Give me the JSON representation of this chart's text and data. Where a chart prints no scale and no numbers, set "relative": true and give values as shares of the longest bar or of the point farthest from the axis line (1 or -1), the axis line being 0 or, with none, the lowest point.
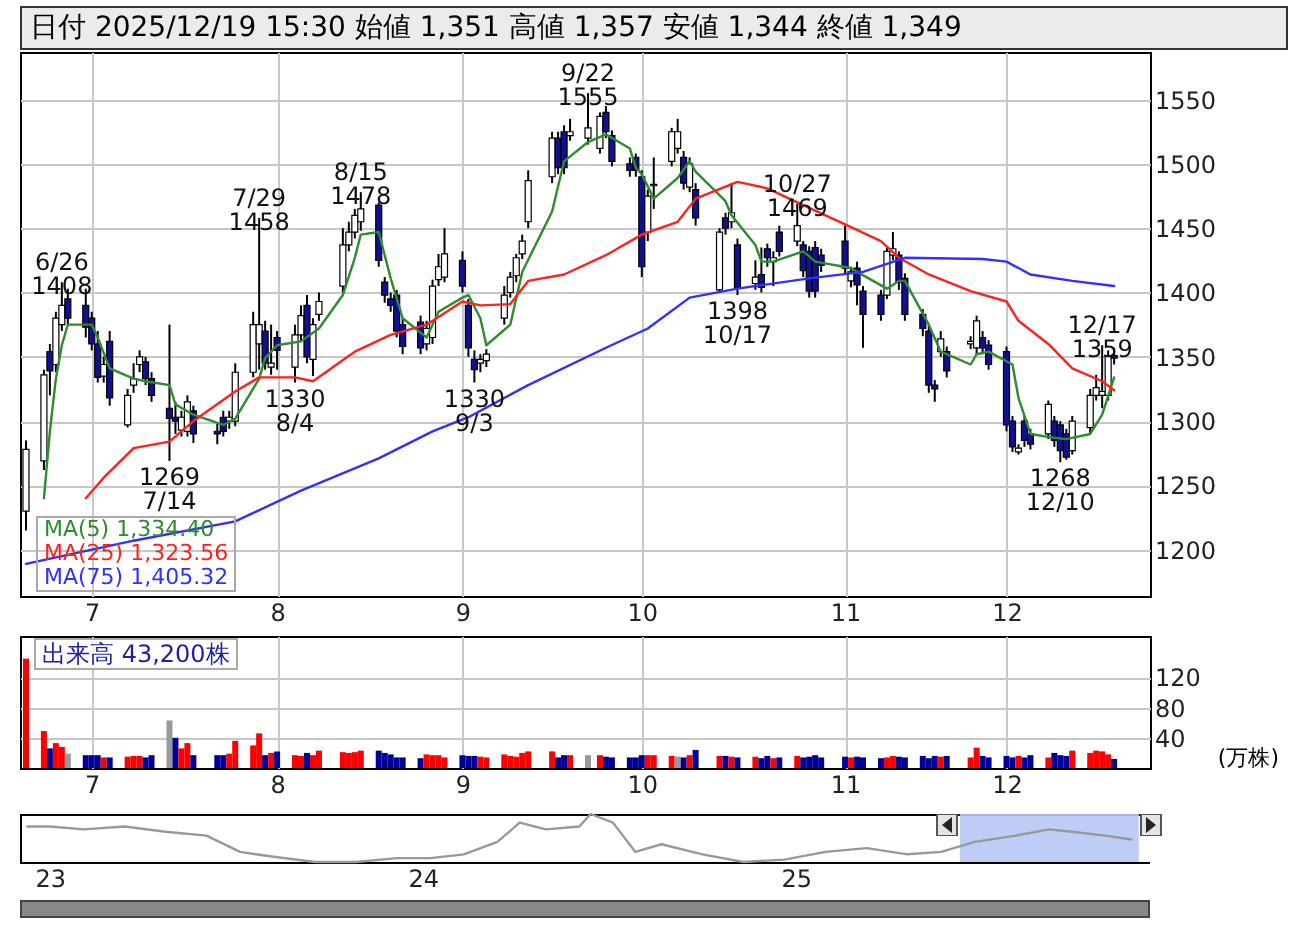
{
  "chart_data": [
    {
      "type": "candlestick",
      "title": "日付 2025/12/19 15:30 始値 1,351 高値 1,357 安値 1,344 終値 1,349",
      "x": [
        "2025-06-20",
        "2025-06-23",
        "2025-06-24",
        "2025-06-25",
        "2025-06-26",
        "2025-06-27",
        "2025-06-30",
        "2025-07-01",
        "2025-07-02",
        "2025-07-03",
        "2025-07-04",
        "2025-07-07",
        "2025-07-08",
        "2025-07-09",
        "2025-07-10",
        "2025-07-11",
        "2025-07-14",
        "2025-07-15",
        "2025-07-16",
        "2025-07-17",
        "2025-07-18",
        "2025-07-22",
        "2025-07-23",
        "2025-07-24",
        "2025-07-25",
        "2025-07-28",
        "2025-07-29",
        "2025-07-30",
        "2025-07-31",
        "2025-08-01",
        "2025-08-04",
        "2025-08-05",
        "2025-08-06",
        "2025-08-07",
        "2025-08-08",
        "2025-08-12",
        "2025-08-13",
        "2025-08-14",
        "2025-08-15",
        "2025-08-18",
        "2025-08-19",
        "2025-08-20",
        "2025-08-21",
        "2025-08-22",
        "2025-08-25",
        "2025-08-26",
        "2025-08-27",
        "2025-08-28",
        "2025-08-29",
        "2025-09-01",
        "2025-09-02",
        "2025-09-03",
        "2025-09-04",
        "2025-09-05",
        "2025-09-08",
        "2025-09-09",
        "2025-09-10",
        "2025-09-11",
        "2025-09-12",
        "2025-09-16",
        "2025-09-17",
        "2025-09-18",
        "2025-09-19",
        "2025-09-22",
        "2025-09-24",
        "2025-09-25",
        "2025-09-26",
        "2025-09-29",
        "2025-09-30",
        "2025-10-01",
        "2025-10-02",
        "2025-10-03",
        "2025-10-06",
        "2025-10-07",
        "2025-10-08",
        "2025-10-09",
        "2025-10-10",
        "2025-10-14",
        "2025-10-15",
        "2025-10-16",
        "2025-10-17",
        "2025-10-20",
        "2025-10-21",
        "2025-10-22",
        "2025-10-23",
        "2025-10-24",
        "2025-10-27",
        "2025-10-28",
        "2025-10-29",
        "2025-10-30",
        "2025-10-31",
        "2025-11-04",
        "2025-11-05",
        "2025-11-06",
        "2025-11-07",
        "2025-11-10",
        "2025-11-11",
        "2025-11-12",
        "2025-11-13",
        "2025-11-14",
        "2025-11-17",
        "2025-11-18",
        "2025-11-19",
        "2025-11-20",
        "2025-11-21",
        "2025-11-25",
        "2025-11-26",
        "2025-11-27",
        "2025-11-28",
        "2025-12-01",
        "2025-12-02",
        "2025-12-03",
        "2025-12-04",
        "2025-12-05",
        "2025-12-08",
        "2025-12-09",
        "2025-12-10",
        "2025-12-11",
        "2025-12-12",
        "2025-12-15",
        "2025-12-16",
        "2025-12-17",
        "2025-12-18",
        "2025-12-19"
      ],
      "ohlc": [
        [
          1230,
          1285,
          1215,
          1278
        ],
        [
          1269,
          1340,
          1262,
          1336
        ],
        [
          1354,
          1360,
          1320,
          1339
        ],
        [
          1344,
          1385,
          1338,
          1380
        ],
        [
          1375,
          1408,
          1370,
          1390
        ],
        [
          1395,
          1403,
          1375,
          1380
        ],
        [
          1390,
          1403,
          1365,
          1373
        ],
        [
          1380,
          1385,
          1355,
          1360
        ],
        [
          1360,
          1370,
          1330,
          1334
        ],
        [
          1335,
          1350,
          1330,
          1344
        ],
        [
          1362,
          1370,
          1312,
          1318
        ],
        [
          1297,
          1325,
          1295,
          1320
        ],
        [
          1328,
          1345,
          1322,
          1333
        ],
        [
          1344,
          1355,
          1338,
          1350
        ],
        [
          1346,
          1350,
          1328,
          1333
        ],
        [
          1333,
          1338,
          1315,
          1320
        ],
        [
          1310,
          1375,
          1269,
          1302
        ],
        [
          1303,
          1315,
          1290,
          1300
        ],
        [
          1293,
          1308,
          1288,
          1303
        ],
        [
          1292,
          1320,
          1288,
          1315
        ],
        [
          1308,
          1312,
          1283,
          1290
        ],
        [
          1292,
          1298,
          1282,
          1290
        ],
        [
          1303,
          1308,
          1288,
          1292
        ],
        [
          1300,
          1308,
          1294,
          1303
        ],
        [
          1300,
          1345,
          1296,
          1338
        ],
        [
          1338,
          1385,
          1334,
          1375
        ],
        [
          1360,
          1458,
          1340,
          1375
        ],
        [
          1370,
          1378,
          1340,
          1345
        ],
        [
          1342,
          1375,
          1336,
          1345
        ],
        [
          1365,
          1370,
          1340,
          1355
        ],
        [
          1342,
          1375,
          1330,
          1367
        ],
        [
          1367,
          1390,
          1362,
          1382
        ],
        [
          1390,
          1398,
          1345,
          1350
        ],
        [
          1348,
          1380,
          1335,
          1375
        ],
        [
          1383,
          1400,
          1378,
          1393
        ],
        [
          1405,
          1450,
          1400,
          1437
        ],
        [
          1437,
          1455,
          1432,
          1447
        ],
        [
          1447,
          1465,
          1442,
          1460
        ],
        [
          1455,
          1478,
          1448,
          1465
        ],
        [
          1468,
          1470,
          1420,
          1425
        ],
        [
          1408,
          1412,
          1392,
          1398
        ],
        [
          1395,
          1400,
          1385,
          1390
        ],
        [
          1398,
          1402,
          1365,
          1370
        ],
        [
          1375,
          1380,
          1352,
          1358
        ],
        [
          1377,
          1382,
          1352,
          1357
        ],
        [
          1360,
          1378,
          1355,
          1372
        ],
        [
          1365,
          1410,
          1360,
          1405
        ],
        [
          1410,
          1430,
          1405,
          1420
        ],
        [
          1412,
          1450,
          1408,
          1430
        ],
        [
          1425,
          1432,
          1400,
          1405
        ],
        [
          1390,
          1395,
          1350,
          1357
        ],
        [
          1348,
          1355,
          1330,
          1340
        ],
        [
          1345,
          1352,
          1338,
          1348
        ],
        [
          1347,
          1356,
          1342,
          1352
        ],
        [
          1380,
          1405,
          1375,
          1398
        ],
        [
          1400,
          1416,
          1396,
          1412
        ],
        [
          1413,
          1430,
          1408,
          1427
        ],
        [
          1430,
          1445,
          1426,
          1440
        ],
        [
          1455,
          1495,
          1450,
          1487
        ],
        [
          1490,
          1525,
          1485,
          1520
        ],
        [
          1520,
          1525,
          1492,
          1497
        ],
        [
          1525,
          1530,
          1492,
          1497
        ],
        [
          1522,
          1535,
          1518,
          1525
        ],
        [
          1520,
          1555,
          1515,
          1528
        ],
        [
          1512,
          1540,
          1508,
          1537
        ],
        [
          1540,
          1545,
          1520,
          1525
        ],
        [
          1522,
          1526,
          1498,
          1502
        ],
        [
          1500,
          1505,
          1490,
          1495
        ],
        [
          1505,
          1508,
          1490,
          1495
        ],
        [
          1490,
          1495,
          1412,
          1420
        ],
        [
          1447,
          1480,
          1440,
          1475
        ],
        [
          1483,
          1505,
          1465,
          1484
        ],
        [
          1502,
          1528,
          1498,
          1525
        ],
        [
          1512,
          1535,
          1508,
          1525
        ],
        [
          1505,
          1510,
          1480,
          1485
        ],
        [
          1482,
          1505,
          1478,
          1500
        ],
        [
          1480,
          1485,
          1452,
          1458
        ],
        [
          1402,
          1450,
          1400,
          1447
        ],
        [
          1458,
          1462,
          1445,
          1450
        ],
        [
          1455,
          1485,
          1450,
          1462
        ],
        [
          1437,
          1442,
          1398,
          1404
        ],
        [
          1407,
          1425,
          1402,
          1412
        ],
        [
          1414,
          1435,
          1400,
          1404
        ],
        [
          1434,
          1438,
          1420,
          1427
        ],
        [
          1424,
          1432,
          1405,
          1427
        ],
        [
          1447,
          1452,
          1428,
          1432
        ],
        [
          1440,
          1469,
          1436,
          1452
        ],
        [
          1437,
          1440,
          1412,
          1417
        ],
        [
          1432,
          1436,
          1396,
          1401
        ],
        [
          1435,
          1440,
          1396,
          1401
        ],
        [
          1429,
          1434,
          1416,
          1421
        ],
        [
          1440,
          1452,
          1414,
          1419
        ],
        [
          1409,
          1420,
          1404,
          1416
        ],
        [
          1419,
          1424,
          1390,
          1406
        ],
        [
          1401,
          1405,
          1357,
          1383
        ],
        [
          1398,
          1402,
          1378,
          1383
        ],
        [
          1398,
          1436,
          1395,
          1432
        ],
        [
          1429,
          1447,
          1425,
          1434
        ],
        [
          1429,
          1432,
          1402,
          1408
        ],
        [
          1411,
          1415,
          1378,
          1383
        ],
        [
          1383,
          1387,
          1366,
          1372
        ],
        [
          1370,
          1375,
          1322,
          1328
        ],
        [
          1328,
          1332,
          1315,
          1325
        ],
        [
          1354,
          1370,
          1350,
          1364
        ],
        [
          1354,
          1358,
          1334,
          1339
        ],
        [
          1360,
          1366,
          1356,
          1362
        ],
        [
          1357,
          1382,
          1352,
          1378
        ],
        [
          1365,
          1370,
          1352,
          1357
        ],
        [
          1359,
          1363,
          1340,
          1344
        ],
        [
          1354,
          1358,
          1292,
          1297
        ],
        [
          1300,
          1304,
          1276,
          1280
        ],
        [
          1276,
          1282,
          1274,
          1279
        ],
        [
          1300,
          1304,
          1280,
          1285
        ],
        [
          1290,
          1294,
          1278,
          1282
        ],
        [
          1290,
          1316,
          1286,
          1313
        ],
        [
          1300,
          1304,
          1280,
          1285
        ],
        [
          1297,
          1300,
          1268,
          1277
        ],
        [
          1290,
          1294,
          1270,
          1272
        ],
        [
          1277,
          1304,
          1274,
          1300
        ],
        [
          1295,
          1325,
          1290,
          1320
        ],
        [
          1320,
          1336,
          1316,
          1326
        ],
        [
          1320,
          1359,
          1310,
          1323
        ],
        [
          1320,
          1355,
          1316,
          1351
        ],
        [
          1351,
          1357,
          1344,
          1349
        ]
      ],
      "colors": [
        "#ffffff",
        "#ffffff",
        "#101090",
        "#ffffff",
        "#ffffff",
        "#101090",
        "#101090",
        "#101090",
        "#101090",
        "#ffffff",
        "#101090",
        "#ffffff",
        "#ffffff",
        "#ffffff",
        "#101090",
        "#101090",
        "#101090",
        "#101090",
        "#ffffff",
        "#ffffff",
        "#101090",
        "#101090",
        "#101090",
        "#ffffff",
        "#ffffff",
        "#ffffff",
        "#ffffff",
        "#101090",
        "#ffffff",
        "#101090",
        "#ffffff",
        "#ffffff",
        "#101090",
        "#ffffff",
        "#ffffff",
        "#ffffff",
        "#ffffff",
        "#ffffff",
        "#ffffff",
        "#101090",
        "#101090",
        "#101090",
        "#101090",
        "#101090",
        "#101090",
        "#ffffff",
        "#ffffff",
        "#ffffff",
        "#ffffff",
        "#101090",
        "#101090",
        "#101090",
        "#ffffff",
        "#ffffff",
        "#ffffff",
        "#ffffff",
        "#ffffff",
        "#ffffff",
        "#ffffff",
        "#ffffff",
        "#101090",
        "#101090",
        "#ffffff",
        "#ffffff",
        "#ffffff",
        "#101090",
        "#101090",
        "#101090",
        "#101090",
        "#101090",
        "#ffffff",
        "#ffffff",
        "#ffffff",
        "#ffffff",
        "#101090",
        "#ffffff",
        "#101090",
        "#ffffff",
        "#101090",
        "#ffffff",
        "#101090",
        "#ffffff",
        "#101090",
        "#101090",
        "#ffffff",
        "#101090",
        "#ffffff",
        "#101090",
        "#101090",
        "#101090",
        "#101090",
        "#101090",
        "#ffffff",
        "#101090",
        "#101090",
        "#101090",
        "#ffffff",
        "#ffffff",
        "#101090",
        "#101090",
        "#101090",
        "#101090",
        "#101090",
        "#ffffff",
        "#101090",
        "#ffffff",
        "#ffffff",
        "#101090",
        "#101090",
        "#101090",
        "#101090",
        "#ffffff",
        "#101090",
        "#101090",
        "#ffffff",
        "#101090",
        "#101090",
        "#101090",
        "#ffffff",
        "#ffffff",
        "#ffffff",
        "#ffffff",
        "#ffffff",
        "#101090"
      ],
      "series": [
        {
          "type": "line",
          "name": "MA(5) 1,334.40",
          "color": "#2e8b2e",
          "x": [
            "2025-06-23",
            "2025-06-24",
            "2025-06-25",
            "2025-06-26",
            "2025-06-27",
            "2025-07-01",
            "2025-07-02",
            "2025-07-04",
            "2025-07-08",
            "2025-07-10",
            "2025-07-14",
            "2025-07-15",
            "2025-07-18",
            "2025-07-23",
            "2025-07-25",
            "2025-07-29",
            "2025-07-30",
            "2025-08-01",
            "2025-08-05",
            "2025-08-08",
            "2025-08-12",
            "2025-08-14",
            "2025-08-15",
            "2025-08-18",
            "2025-08-20",
            "2025-08-22",
            "2025-08-26",
            "2025-08-28",
            "2025-09-01",
            "2025-09-02",
            "2025-09-04",
            "2025-09-05",
            "2025-09-09",
            "2025-09-11",
            "2025-09-16",
            "2025-09-18",
            "2025-09-22",
            "2025-09-25",
            "2025-09-29",
            "2025-09-30",
            "2025-10-01",
            "2025-10-03",
            "2025-10-07",
            "2025-10-09",
            "2025-10-10",
            "2025-10-15",
            "2025-10-16",
            "2025-10-20",
            "2025-10-21",
            "2025-10-23",
            "2025-10-28",
            "2025-10-30",
            "2025-11-05",
            "2025-11-06",
            "2025-11-11",
            "2025-11-13",
            "2025-11-14",
            "2025-11-18",
            "2025-11-20",
            "2025-11-25",
            "2025-11-26",
            "2025-11-28",
            "2025-12-02",
            "2025-12-03",
            "2025-12-05",
            "2025-12-09",
            "2025-12-11",
            "2025-12-15",
            "2025-12-17",
            "2025-12-19"
          ],
          "values": [
            1240,
            1292,
            1333,
            1359,
            1375,
            1375,
            1365,
            1341,
            1333,
            1331,
            1328,
            1313,
            1305,
            1297,
            1302,
            1333,
            1349,
            1359,
            1362,
            1372,
            1398,
            1427,
            1445,
            1447,
            1411,
            1380,
            1365,
            1385,
            1396,
            1398,
            1380,
            1359,
            1375,
            1416,
            1463,
            1502,
            1517,
            1523,
            1512,
            1497,
            1492,
            1473,
            1489,
            1502,
            1494,
            1471,
            1460,
            1437,
            1424,
            1424,
            1432,
            1424,
            1419,
            1416,
            1403,
            1409,
            1409,
            1375,
            1354,
            1344,
            1352,
            1354,
            1344,
            1318,
            1290,
            1287,
            1286,
            1290,
            1305,
            1334
          ]
        },
        {
          "type": "line",
          "name": "MA(25) 1,323.56",
          "color": "#ff2020",
          "x": [
            "2025-06-30",
            "2025-07-03",
            "2025-07-08",
            "2025-07-14",
            "2025-07-18",
            "2025-07-25",
            "2025-07-29",
            "2025-08-04",
            "2025-08-07",
            "2025-08-14",
            "2025-08-20",
            "2025-08-26",
            "2025-09-01",
            "2025-09-04",
            "2025-09-09",
            "2025-09-12",
            "2025-09-18",
            "2025-09-25",
            "2025-10-01",
            "2025-10-07",
            "2025-10-10",
            "2025-10-17",
            "2025-10-22",
            "2025-10-28",
            "2025-11-04",
            "2025-11-10",
            "2025-11-13",
            "2025-11-18",
            "2025-11-25",
            "2025-12-01",
            "2025-12-03",
            "2025-12-08",
            "2025-12-12",
            "2025-12-17",
            "2025-12-19"
          ],
          "values": [
            1240,
            1256,
            1279,
            1284,
            1300,
            1323,
            1334,
            1334,
            1331,
            1354,
            1367,
            1375,
            1393,
            1390,
            1391,
            1409,
            1414,
            1429,
            1445,
            1455,
            1473,
            1486,
            1481,
            1468,
            1453,
            1440,
            1427,
            1414,
            1401,
            1393,
            1378,
            1360,
            1341,
            1331,
            1324
          ]
        },
        {
          "type": "line",
          "name": "MA(75) 1,405.32",
          "color": "#3030ff",
          "x": [
            "2025-06-20",
            "2025-07-08",
            "2025-07-25",
            "2025-08-05",
            "2025-08-18",
            "2025-08-27",
            "2025-09-02",
            "2025-09-12",
            "2025-09-25",
            "2025-10-02",
            "2025-10-09",
            "2025-10-17",
            "2025-10-29",
            "2025-11-07",
            "2025-11-14",
            "2025-11-27",
            "2025-12-01",
            "2025-12-05",
            "2025-12-12",
            "2025-12-19"
          ],
          "values": [
            1189,
            1207,
            1222,
            1246,
            1271,
            1292,
            1303,
            1328,
            1357,
            1372,
            1396,
            1403,
            1411,
            1416,
            1427,
            1426,
            1424,
            1414,
            1409,
            1405
          ]
        }
      ],
      "xlim": [
        "2025-06-19",
        "2025-12-25"
      ],
      "xticks": [
        {
          "value": "2025-07-01",
          "label": "7"
        },
        {
          "value": "2025-08-01",
          "label": "8"
        },
        {
          "value": "2025-09-01",
          "label": "9"
        },
        {
          "value": "2025-10-01",
          "label": "10"
        },
        {
          "value": "2025-11-04",
          "label": "11"
        },
        {
          "value": "2025-12-01",
          "label": "12"
        }
      ],
      "ylim": [
        1164,
        1587
      ],
      "yticks": [
        1200,
        1250,
        1300,
        1350,
        1400,
        1450,
        1500,
        1550
      ],
      "grid": true,
      "legend": "bottom left",
      "annotations": [
        {
          "text": "6/26\n1408",
          "x": "2025-06-26",
          "y": 1408
        },
        {
          "text": "1269\n7/14",
          "x": "2025-07-14",
          "y": 1269
        },
        {
          "text": "7/29\n1458",
          "x": "2025-07-29",
          "y": 1458
        },
        {
          "text": "1330\n8/4",
          "x": "2025-08-04",
          "y": 1330
        },
        {
          "text": "8/15\n1478",
          "x": "2025-08-15",
          "y": 1478
        },
        {
          "text": "1330\n9/3",
          "x": "2025-09-03",
          "y": 1330
        },
        {
          "text": "9/22\n1555",
          "x": "2025-09-22",
          "y": 1555
        },
        {
          "text": "1398\n10/17",
          "x": "2025-10-17",
          "y": 1398
        },
        {
          "text": "10/27\n1469",
          "x": "2025-10-27",
          "y": 1469
        },
        {
          "text": "1268\n12/10",
          "x": "2025-12-10",
          "y": 1268
        },
        {
          "text": "12/17\n1359",
          "x": "2025-12-17",
          "y": 1359
        }
      ]
    },
    {
      "type": "bar",
      "title": "出来高 43,200株",
      "ylabel": "(万株)",
      "x": [
        "2025-06-20",
        "2025-06-23",
        "2025-06-24",
        "2025-06-25",
        "2025-06-26",
        "2025-06-27",
        "2025-06-30",
        "2025-07-01",
        "2025-07-02",
        "2025-07-03",
        "2025-07-04",
        "2025-07-07",
        "2025-07-08",
        "2025-07-09",
        "2025-07-10",
        "2025-07-11",
        "2025-07-14",
        "2025-07-15",
        "2025-07-16",
        "2025-07-17",
        "2025-07-18",
        "2025-07-22",
        "2025-07-23",
        "2025-07-24",
        "2025-07-25",
        "2025-07-28",
        "2025-07-29",
        "2025-07-30",
        "2025-07-31",
        "2025-08-01",
        "2025-08-04",
        "2025-08-05",
        "2025-08-06",
        "2025-08-07",
        "2025-08-08",
        "2025-08-12",
        "2025-08-13",
        "2025-08-14",
        "2025-08-15",
        "2025-08-18",
        "2025-08-19",
        "2025-08-20",
        "2025-08-21",
        "2025-08-22",
        "2025-08-25",
        "2025-08-26",
        "2025-08-27",
        "2025-08-28",
        "2025-08-29",
        "2025-09-01",
        "2025-09-02",
        "2025-09-03",
        "2025-09-04",
        "2025-09-05",
        "2025-09-08",
        "2025-09-09",
        "2025-09-10",
        "2025-09-11",
        "2025-09-12",
        "2025-09-16",
        "2025-09-17",
        "2025-09-18",
        "2025-09-19",
        "2025-09-22",
        "2025-09-24",
        "2025-09-25",
        "2025-09-26",
        "2025-09-29",
        "2025-09-30",
        "2025-10-01",
        "2025-10-02",
        "2025-10-03",
        "2025-10-06",
        "2025-10-07",
        "2025-10-08",
        "2025-10-09",
        "2025-10-10",
        "2025-10-14",
        "2025-10-15",
        "2025-10-16",
        "2025-10-17",
        "2025-10-20",
        "2025-10-21",
        "2025-10-22",
        "2025-10-23",
        "2025-10-24",
        "2025-10-27",
        "2025-10-28",
        "2025-10-29",
        "2025-10-30",
        "2025-10-31",
        "2025-11-04",
        "2025-11-05",
        "2025-11-06",
        "2025-11-07",
        "2025-11-10",
        "2025-11-11",
        "2025-11-12",
        "2025-11-13",
        "2025-11-14",
        "2025-11-17",
        "2025-11-18",
        "2025-11-19",
        "2025-11-20",
        "2025-11-21",
        "2025-11-25",
        "2025-11-26",
        "2025-11-27",
        "2025-11-28",
        "2025-12-01",
        "2025-12-02",
        "2025-12-03",
        "2025-12-04",
        "2025-12-05",
        "2025-12-08",
        "2025-12-09",
        "2025-12-10",
        "2025-12-11",
        "2025-12-12",
        "2025-12-15",
        "2025-12-16",
        "2025-12-17",
        "2025-12-18",
        "2025-12-19"
      ],
      "values": [
        145,
        49,
        26,
        33,
        28,
        19,
        17,
        17,
        17,
        14,
        14,
        15,
        16,
        16,
        14,
        17,
        63,
        40,
        26,
        33,
        17,
        17,
        17,
        19,
        36,
        30,
        46,
        17,
        20,
        22,
        17,
        16,
        20,
        17,
        23,
        21,
        20,
        21,
        23,
        23,
        20,
        18,
        14,
        14,
        13,
        18,
        17,
        17,
        14,
        17,
        16,
        16,
        15,
        14,
        18,
        16,
        15,
        20,
        22,
        22,
        14,
        17,
        17,
        17,
        17,
        15,
        14,
        14,
        14,
        17,
        17,
        17,
        16,
        15,
        14,
        17,
        24,
        16,
        16,
        15,
        14,
        15,
        13,
        16,
        13,
        14,
        16,
        14,
        15,
        17,
        14,
        15,
        14,
        15,
        14,
        13,
        14,
        16,
        15,
        14,
        16,
        13,
        16,
        15,
        16,
        14,
        27,
        16,
        14,
        16,
        14,
        16,
        14,
        17,
        14,
        20,
        17,
        16,
        23,
        20,
        23,
        22,
        18,
        12
      ],
      "colors": [
        "#ff0000",
        "#ff0000",
        "#000099",
        "#ff0000",
        "#ff0000",
        "#999999",
        "#000099",
        "#000099",
        "#000099",
        "#ff0000",
        "#000099",
        "#ff0000",
        "#ff0000",
        "#ff0000",
        "#000099",
        "#000099",
        "#999999",
        "#000099",
        "#ff0000",
        "#ff0000",
        "#000099",
        "#000099",
        "#000099",
        "#ff0000",
        "#ff0000",
        "#ff0000",
        "#ff0000",
        "#000099",
        "#ff0000",
        "#000099",
        "#ff0000",
        "#ff0000",
        "#000099",
        "#ff0000",
        "#ff0000",
        "#ff0000",
        "#ff0000",
        "#ff0000",
        "#ff0000",
        "#000099",
        "#000099",
        "#000099",
        "#000099",
        "#000099",
        "#000099",
        "#ff0000",
        "#ff0000",
        "#ff0000",
        "#ff0000",
        "#000099",
        "#000099",
        "#000099",
        "#ff0000",
        "#ff0000",
        "#ff0000",
        "#ff0000",
        "#ff0000",
        "#ff0000",
        "#ff0000",
        "#ff0000",
        "#000099",
        "#000099",
        "#ff0000",
        "#999999",
        "#ff0000",
        "#000099",
        "#000099",
        "#000099",
        "#000099",
        "#000099",
        "#ff0000",
        "#ff0000",
        "#ff0000",
        "#999999",
        "#000099",
        "#ff0000",
        "#000099",
        "#ff0000",
        "#000099",
        "#ff0000",
        "#000099",
        "#ff0000",
        "#000099",
        "#000099",
        "#ff0000",
        "#000099",
        "#ff0000",
        "#000099",
        "#000099",
        "#000099",
        "#000099",
        "#000099",
        "#ff0000",
        "#000099",
        "#000099",
        "#000099",
        "#ff0000",
        "#ff0000",
        "#000099",
        "#000099",
        "#000099",
        "#000099",
        "#000099",
        "#ff0000",
        "#000099",
        "#ff0000",
        "#ff0000",
        "#000099",
        "#000099",
        "#000099",
        "#000099",
        "#ff0000",
        "#000099",
        "#000099",
        "#ff0000",
        "#000099",
        "#000099",
        "#000099",
        "#ff0000",
        "#ff0000",
        "#ff0000",
        "#ff0000",
        "#ff0000",
        "#000099"
      ],
      "xlim": [
        "2025-06-19",
        "2025-12-25"
      ],
      "xticks": [
        {
          "value": "2025-07-01",
          "label": "7"
        },
        {
          "value": "2025-08-01",
          "label": "8"
        },
        {
          "value": "2025-09-01",
          "label": "9"
        },
        {
          "value": "2025-10-01",
          "label": "10"
        },
        {
          "value": "2025-11-04",
          "label": "11"
        },
        {
          "value": "2025-12-01",
          "label": "12"
        }
      ],
      "ylim": [
        0,
        175
      ],
      "yticks": [
        40,
        80,
        120
      ],
      "grid": true
    },
    {
      "type": "line",
      "relative": true,
      "color": "#999999",
      "x": [
        2022.94,
        2023.0,
        2023.09,
        2023.2,
        2023.31,
        2023.42,
        2023.51,
        2023.6,
        2023.71,
        2023.82,
        2023.93,
        2024.02,
        2024.11,
        2024.2,
        2024.26,
        2024.33,
        2024.42,
        2024.45,
        2024.51,
        2024.57,
        2024.64,
        2024.75,
        2024.86,
        2024.97,
        2025.08,
        2025.19,
        2025.3,
        2025.39,
        2025.48,
        2025.59,
        2025.68,
        2025.74,
        2025.83,
        2025.9
      ],
      "values": [
        0.74,
        0.74,
        0.68,
        0.74,
        0.63,
        0.55,
        0.21,
        0.11,
        0,
        0,
        0.08,
        0.08,
        0.16,
        0.42,
        0.82,
        0.68,
        0.74,
        1,
        0.82,
        0.21,
        0.37,
        0.16,
        0,
        0.05,
        0.21,
        0.29,
        0.16,
        0.21,
        0.42,
        0.55,
        0.68,
        0.63,
        0.55,
        0.47
      ],
      "xlim": [
        2022.92,
        2025.95
      ],
      "xticks": [
        {
          "value": 2023,
          "label": "23"
        },
        {
          "value": 2024,
          "label": "24"
        },
        {
          "value": 2025,
          "label": "25"
        }
      ],
      "bands": [
        {
          "axis": "x",
          "from": 2025.44,
          "to": 2025.92,
          "color": "#b8c6f4"
        }
      ]
    }
  ]
}
